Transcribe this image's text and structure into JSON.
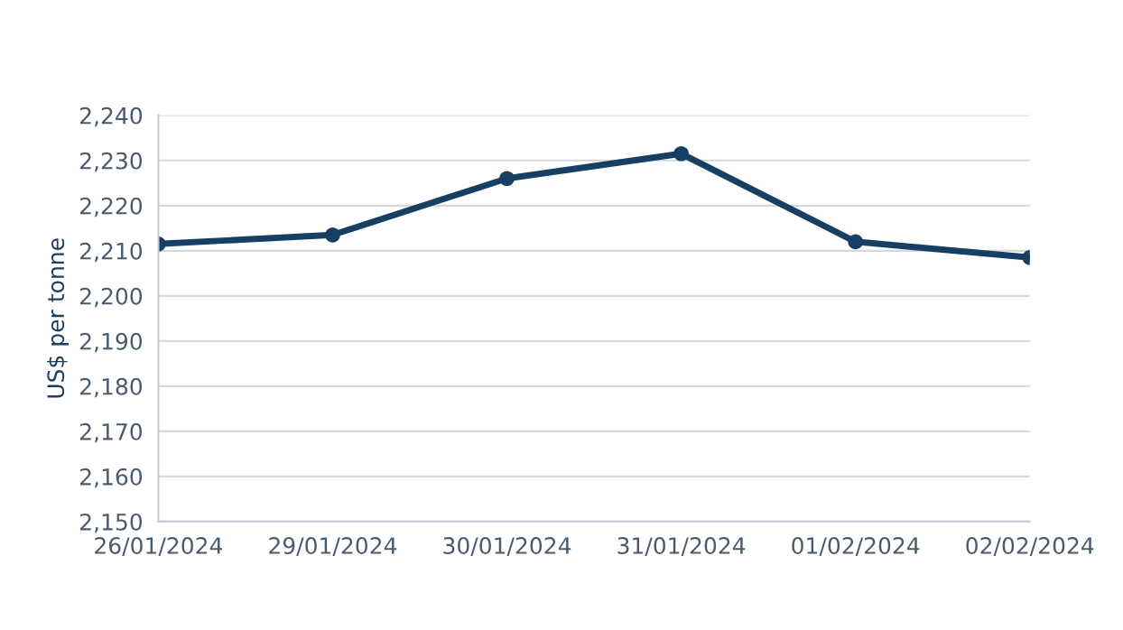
{
  "chart_data": {
    "type": "line",
    "ylabel": "US$ per tonne",
    "categories": [
      "26/01/2024",
      "29/01/2024",
      "30/01/2024",
      "31/01/2024",
      "01/02/2024",
      "02/02/2024"
    ],
    "series": [
      {
        "color": "#173f63",
        "values": [
          2211.5,
          2213.5,
          2226,
          2231.5,
          2212,
          2208.5
        ]
      }
    ],
    "ylim": [
      2150,
      2240
    ],
    "yticks": [
      {
        "value": 2150,
        "label": "2,150"
      },
      {
        "value": 2160,
        "label": "2,160"
      },
      {
        "value": 2170,
        "label": "2,170"
      },
      {
        "value": 2180,
        "label": "2,180"
      },
      {
        "value": 2190,
        "label": "2,190"
      },
      {
        "value": 2200,
        "label": "2,200"
      },
      {
        "value": 2210,
        "label": "2,210"
      },
      {
        "value": 2220,
        "label": "2,220"
      },
      {
        "value": 2230,
        "label": "2,230"
      },
      {
        "value": 2240,
        "label": "2,240"
      }
    ],
    "grid": "y",
    "marker": "circle",
    "line_style": "solid",
    "legend": false
  }
}
